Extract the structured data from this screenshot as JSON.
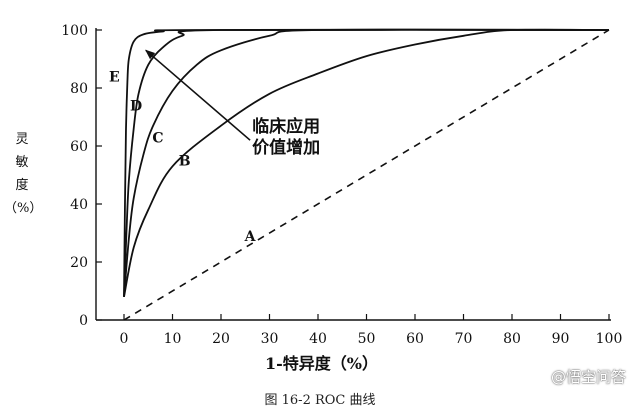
{
  "chart_data": {
    "type": "line",
    "xlabel": "1-特异度（%）",
    "ylabel": [
      "灵",
      "敏",
      "度",
      "（%）"
    ],
    "xlim": [
      0,
      100
    ],
    "ylim": [
      0,
      100
    ],
    "x_ticks": [
      "0",
      "10",
      "20",
      "30",
      "40",
      "50",
      "60",
      "70",
      "80",
      "90",
      "100"
    ],
    "y_ticks": [
      "0",
      "20",
      "40",
      "60",
      "80",
      "100"
    ],
    "grid": false,
    "series": [
      {
        "name": "A",
        "style": "dashed",
        "points": [
          [
            0,
            0
          ],
          [
            100,
            100
          ]
        ]
      },
      {
        "name": "B",
        "style": "solid",
        "points": [
          [
            0,
            8
          ],
          [
            2,
            25
          ],
          [
            5,
            38
          ],
          [
            10,
            53
          ],
          [
            20,
            67
          ],
          [
            30,
            78
          ],
          [
            40,
            85
          ],
          [
            50,
            91
          ],
          [
            60,
            95
          ],
          [
            70,
            98
          ],
          [
            80,
            100
          ],
          [
            100,
            100
          ]
        ]
      },
      {
        "name": "C",
        "style": "solid",
        "points": [
          [
            0,
            8
          ],
          [
            1,
            28
          ],
          [
            2,
            42
          ],
          [
            4,
            57
          ],
          [
            6,
            67
          ],
          [
            10,
            79
          ],
          [
            15,
            88
          ],
          [
            20,
            93
          ],
          [
            30,
            98
          ],
          [
            40,
            100
          ],
          [
            100,
            100
          ]
        ]
      },
      {
        "name": "D",
        "style": "solid",
        "points": [
          [
            0,
            8
          ],
          [
            0.5,
            30
          ],
          [
            1,
            48
          ],
          [
            2,
            66
          ],
          [
            3,
            78
          ],
          [
            5,
            88
          ],
          [
            8,
            94
          ],
          [
            12,
            98
          ],
          [
            20,
            100
          ],
          [
            100,
            100
          ]
        ]
      },
      {
        "name": "E",
        "style": "solid",
        "points": [
          [
            0,
            8
          ],
          [
            0.2,
            40
          ],
          [
            0.4,
            65
          ],
          [
            0.7,
            82
          ],
          [
            1,
            90
          ],
          [
            2,
            96
          ],
          [
            4,
            98.5
          ],
          [
            8,
            99.5
          ],
          [
            15,
            100
          ],
          [
            100,
            100
          ]
        ]
      }
    ],
    "curve_labels": [
      {
        "text": "E",
        "x": -2,
        "y": 84
      },
      {
        "text": "D",
        "x": 2.5,
        "y": 74
      },
      {
        "text": "C",
        "x": 7,
        "y": 63
      },
      {
        "text": "B",
        "x": 12.5,
        "y": 55
      },
      {
        "text": "A",
        "x": 26,
        "y": 29
      }
    ],
    "annotation": {
      "lines": [
        "临床应用",
        "价值增加"
      ],
      "arrow_from": [
        26,
        62
      ],
      "arrow_to": [
        4.5,
        93
      ]
    }
  },
  "caption": "图 16-2 ROC 曲线",
  "watermark": "@悟空问答"
}
